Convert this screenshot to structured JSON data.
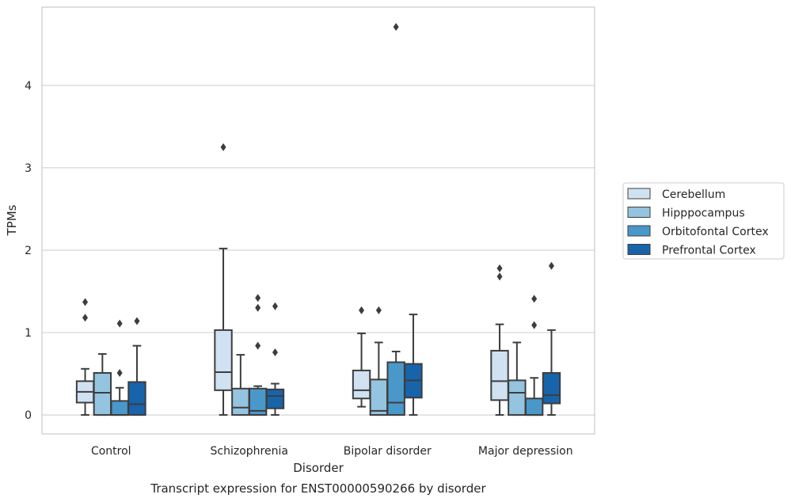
{
  "chart_data": {
    "type": "box",
    "caption": "Transcript expression for ENST00000590266 by disorder",
    "xlabel": "Disorder",
    "ylabel": "TPMs",
    "ylim": [
      -0.23,
      4.95
    ],
    "yticks": [
      0,
      1,
      2,
      3,
      4
    ],
    "grid": "horizontal",
    "legend_position": "right",
    "categories": [
      "Control",
      "Schizophrenia",
      "Bipolar disorder",
      "Major depression"
    ],
    "series": [
      {
        "name": "Cerebellum",
        "color": "#d0e1f2",
        "boxes": [
          {
            "whislo": 0.0,
            "q1": 0.15,
            "med": 0.28,
            "q3": 0.41,
            "whishi": 0.56,
            "fliers": [
              1.18,
              1.37
            ]
          },
          {
            "whislo": 0.0,
            "q1": 0.3,
            "med": 0.52,
            "q3": 1.03,
            "whishi": 2.02,
            "fliers": [
              3.25
            ]
          },
          {
            "whislo": 0.1,
            "q1": 0.2,
            "med": 0.3,
            "q3": 0.54,
            "whishi": 0.99,
            "fliers": [
              1.27
            ]
          },
          {
            "whislo": 0.0,
            "q1": 0.18,
            "med": 0.41,
            "q3": 0.78,
            "whishi": 1.1,
            "fliers": [
              1.68,
              1.78
            ]
          }
        ]
      },
      {
        "name": "Hipppocampus",
        "color": "#94c4df",
        "boxes": [
          {
            "whislo": 0.0,
            "q1": 0.0,
            "med": 0.27,
            "q3": 0.51,
            "whishi": 0.74,
            "fliers": []
          },
          {
            "whislo": 0.0,
            "q1": 0.0,
            "med": 0.09,
            "q3": 0.32,
            "whishi": 0.73,
            "fliers": []
          },
          {
            "whislo": 0.0,
            "q1": 0.0,
            "med": 0.05,
            "q3": 0.43,
            "whishi": 0.88,
            "fliers": [
              1.27
            ]
          },
          {
            "whislo": 0.0,
            "q1": 0.0,
            "med": 0.27,
            "q3": 0.42,
            "whishi": 0.88,
            "fliers": []
          }
        ]
      },
      {
        "name": "Orbitofontal Cortex",
        "color": "#4a98c9",
        "boxes": [
          {
            "whislo": 0.0,
            "q1": 0.0,
            "med": 0.0,
            "q3": 0.17,
            "whishi": 0.33,
            "fliers": [
              0.51,
              1.11
            ]
          },
          {
            "whislo": 0.0,
            "q1": 0.0,
            "med": 0.05,
            "q3": 0.32,
            "whishi": 0.35,
            "fliers": [
              0.84,
              1.3,
              1.42
            ]
          },
          {
            "whislo": 0.0,
            "q1": 0.0,
            "med": 0.15,
            "q3": 0.64,
            "whishi": 0.77,
            "fliers": [
              4.71
            ]
          },
          {
            "whislo": 0.0,
            "q1": 0.0,
            "med": 0.0,
            "q3": 0.2,
            "whishi": 0.45,
            "fliers": [
              1.09,
              1.41
            ]
          }
        ]
      },
      {
        "name": "Prefrontal Cortex",
        "color": "#1764ab",
        "boxes": [
          {
            "whislo": 0.0,
            "q1": 0.0,
            "med": 0.13,
            "q3": 0.4,
            "whishi": 0.84,
            "fliers": [
              1.14
            ]
          },
          {
            "whislo": 0.0,
            "q1": 0.08,
            "med": 0.23,
            "q3": 0.31,
            "whishi": 0.38,
            "fliers": [
              0.76,
              1.32
            ]
          },
          {
            "whislo": 0.0,
            "q1": 0.21,
            "med": 0.42,
            "q3": 0.62,
            "whishi": 1.22,
            "fliers": []
          },
          {
            "whislo": 0.0,
            "q1": 0.14,
            "med": 0.24,
            "q3": 0.51,
            "whishi": 1.03,
            "fliers": [
              1.81
            ]
          }
        ]
      }
    ]
  }
}
